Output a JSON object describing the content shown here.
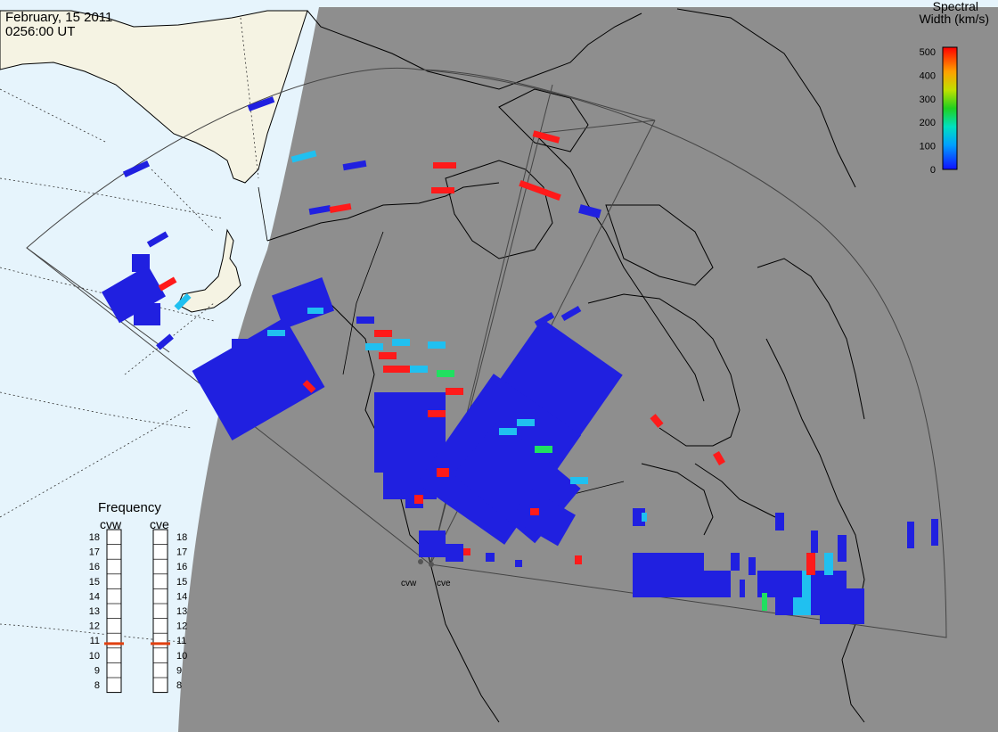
{
  "header": {
    "date": "February, 15 2011",
    "time": "0256:00 UT"
  },
  "colorbar": {
    "title_line1": "Spectral",
    "title_line2": "Width (km/s)",
    "ticks": [
      "500",
      "400",
      "300",
      "200",
      "100",
      "0"
    ]
  },
  "frequency_panel": {
    "title": "Frequency",
    "radar_left": "cvw",
    "radar_right": "cve",
    "scale": [
      "18",
      "17",
      "16",
      "15",
      "14",
      "13",
      "12",
      "11",
      "10",
      "9",
      "8"
    ],
    "cvw_frequency_mhz": 10.8,
    "cve_frequency_mhz": 10.8
  },
  "sites": {
    "left": "cvw",
    "right": "cve"
  },
  "colors": {
    "ocean": "#e6f4fc",
    "land_day": "#f5f3e3",
    "night": "#8e8e8e",
    "coast": "#000000",
    "scatter_low": "#2020e0",
    "scatter_cyan": "#20c0f0",
    "scatter_green": "#20e060",
    "scatter_red": "#ff1a1a",
    "freq_marker": "#e04010"
  }
}
